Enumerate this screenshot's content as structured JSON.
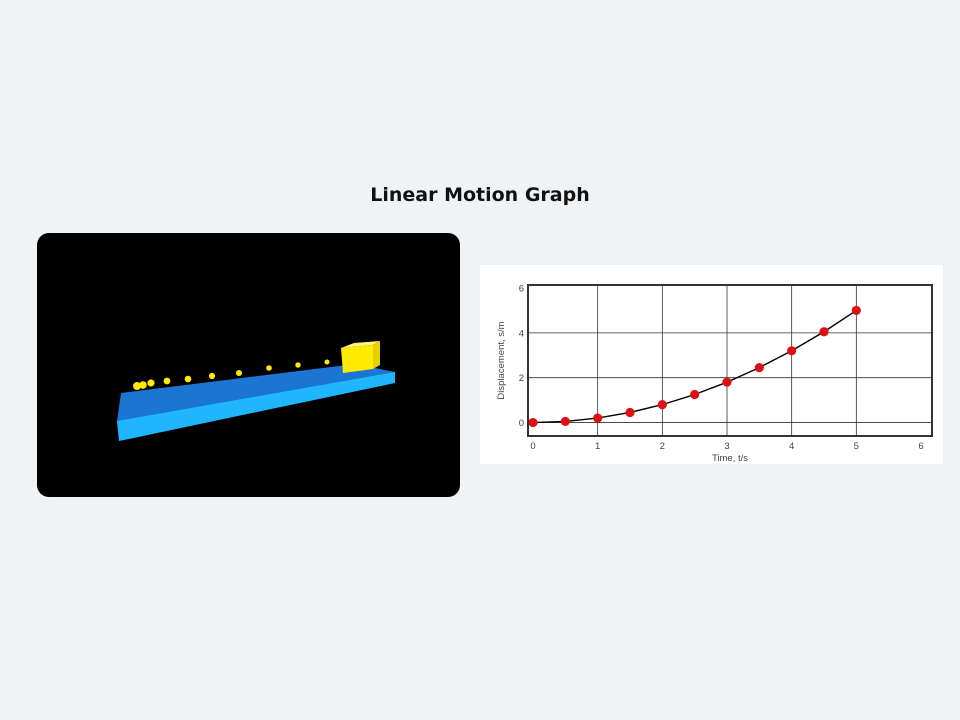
{
  "page": {
    "title": "Linear Motion Graph"
  },
  "scene": {
    "background_color": "#000000",
    "track_top_color": "#1a76d2",
    "track_front_color": "#1fb6ff",
    "track_side_color": "#1597e0",
    "block_color": "#ffea00",
    "trail_color": "#ffea00",
    "trail_count": 10
  },
  "chart_data": {
    "type": "line",
    "title": "",
    "xlabel": "Time, t/s",
    "ylabel": "Displacement, s/m",
    "xlim": [
      0,
      6
    ],
    "ylim": [
      -0.6,
      6
    ],
    "xticks": [
      0,
      1,
      2,
      3,
      4,
      5,
      6
    ],
    "yticks": [
      0,
      2,
      4,
      6
    ],
    "grid": true,
    "series": [
      {
        "name": "displacement",
        "line_color": "#000000",
        "marker_color": "#dd1111",
        "x": [
          0,
          0.5,
          1,
          1.5,
          2,
          2.5,
          3,
          3.5,
          4,
          4.5,
          5
        ],
        "values": [
          0,
          0.05,
          0.2,
          0.45,
          0.8,
          1.25,
          1.8,
          2.45,
          3.2,
          4.05,
          5
        ]
      }
    ]
  }
}
